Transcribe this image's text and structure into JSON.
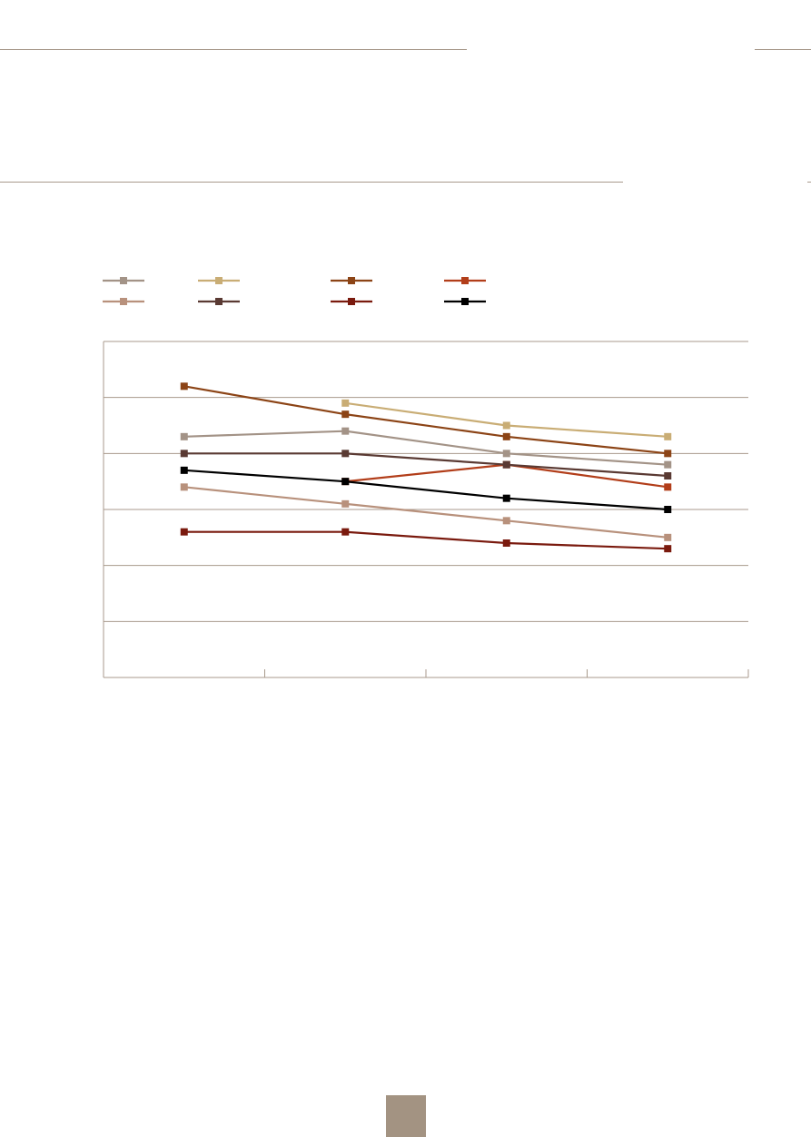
{
  "page": {
    "rule_color": "#a89a8c",
    "badge_color": "#a39382"
  },
  "chart_data": {
    "type": "line",
    "title": "",
    "xlabel": "",
    "ylabel": "",
    "categories": [
      "",
      "",
      "",
      ""
    ],
    "ylim": [
      0,
      6
    ],
    "grid": true,
    "legend_position": "top-left",
    "series": [
      {
        "color": "#a39387",
        "values": [
          4.3,
          4.4,
          4.0,
          3.8
        ]
      },
      {
        "color": "#c9ad75",
        "values": [
          null,
          4.9,
          4.5,
          4.3
        ]
      },
      {
        "color": "#8c4416",
        "values": [
          5.2,
          4.7,
          4.3,
          4.0
        ]
      },
      {
        "color": "#b23e1a",
        "values": [
          null,
          3.5,
          3.8,
          3.4
        ]
      },
      {
        "color": "#b8917c",
        "values": [
          3.4,
          3.1,
          2.8,
          2.5
        ]
      },
      {
        "color": "#5a3a33",
        "values": [
          4.0,
          4.0,
          3.8,
          3.6
        ]
      },
      {
        "color": "#7a1a0e",
        "values": [
          2.6,
          2.6,
          2.4,
          2.3
        ]
      },
      {
        "color": "#000000",
        "values": [
          3.7,
          3.5,
          3.2,
          3.0
        ]
      }
    ]
  }
}
